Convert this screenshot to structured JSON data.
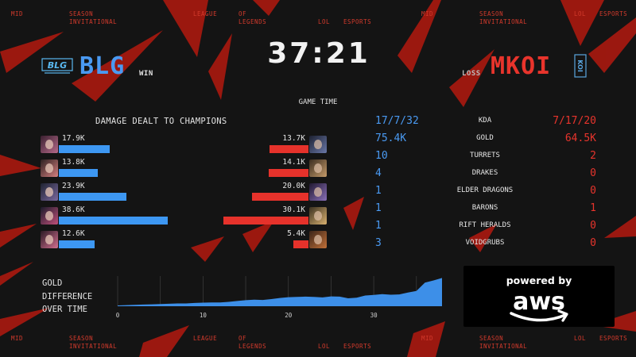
{
  "ticker": {
    "mid": "MID",
    "season": "SEASON",
    "invitational": "INVITATIONAL",
    "league": "LEAGUE",
    "of": "OF",
    "legends": "LEGENDS",
    "lol": "LOL",
    "esports": "ESPORTS"
  },
  "blue_team": {
    "name": "BLG",
    "result": "WIN",
    "logo_text": "BLG",
    "color": "#4a9af2"
  },
  "red_team": {
    "name": "MKOI",
    "result": "LOSS",
    "logo_text": "KOI",
    "color": "#e8342c"
  },
  "game_time": "37:21",
  "game_time_label": "GAME TIME",
  "damage": {
    "title": "DAMAGE DEALT TO CHAMPIONS",
    "blue": [
      {
        "label": "17.9K",
        "value": 17.9,
        "icon": "champion-portrait-icon"
      },
      {
        "label": "13.8K",
        "value": 13.8,
        "icon": "champion-portrait-icon"
      },
      {
        "label": "23.9K",
        "value": 23.9,
        "icon": "champion-portrait-icon"
      },
      {
        "label": "38.6K",
        "value": 38.6,
        "icon": "champion-portrait-icon"
      },
      {
        "label": "12.6K",
        "value": 12.6,
        "icon": "champion-portrait-icon"
      }
    ],
    "red": [
      {
        "label": "13.7K",
        "value": 13.7,
        "icon": "champion-portrait-icon"
      },
      {
        "label": "14.1K",
        "value": 14.1,
        "icon": "champion-portrait-icon"
      },
      {
        "label": "20.0K",
        "value": 20.0,
        "icon": "champion-portrait-icon"
      },
      {
        "label": "30.1K",
        "value": 30.1,
        "icon": "champion-portrait-icon"
      },
      {
        "label": "5.4K",
        "value": 5.4,
        "icon": "champion-portrait-icon"
      }
    ]
  },
  "stats": [
    {
      "label": "KDA",
      "blue": "17/7/32",
      "red": "7/17/20"
    },
    {
      "label": "GOLD",
      "blue": "75.4K",
      "red": "64.5K"
    },
    {
      "label": "TURRETS",
      "blue": "10",
      "red": "2"
    },
    {
      "label": "DRAKES",
      "blue": "4",
      "red": "0"
    },
    {
      "label": "ELDER DRAGONS",
      "blue": "1",
      "red": "0"
    },
    {
      "label": "BARONS",
      "blue": "1",
      "red": "1"
    },
    {
      "label": "RIFT HERALDS",
      "blue": "1",
      "red": "0"
    },
    {
      "label": "VOIDGRUBS",
      "blue": "3",
      "red": "0"
    }
  ],
  "gold_chart": {
    "title_lines": [
      "GOLD",
      "DIFFERENCE",
      "OVER TIME"
    ]
  },
  "sponsor": {
    "powered_by": "powered by",
    "brand": "aws"
  },
  "chart_data": {
    "type": "area",
    "title": "GOLD DIFFERENCE OVER TIME",
    "xlabel": "",
    "ylabel": "",
    "x_ticks": [
      0,
      10,
      20,
      30
    ],
    "xlim": [
      0,
      38
    ],
    "ylim": [
      0,
      11
    ],
    "x": [
      0,
      1,
      2,
      3,
      4,
      5,
      6,
      7,
      8,
      9,
      10,
      11,
      12,
      13,
      14,
      15,
      16,
      17,
      18,
      19,
      20,
      21,
      22,
      23,
      24,
      25,
      26,
      27,
      28,
      29,
      30,
      31,
      32,
      33,
      34,
      35,
      36,
      37,
      38
    ],
    "series": [
      {
        "values": [
          0.3,
          0.4,
          0.5,
          0.6,
          0.7,
          0.8,
          0.9,
          1.0,
          1.0,
          1.2,
          1.3,
          1.4,
          1.4,
          1.6,
          1.9,
          2.2,
          2.4,
          2.3,
          2.6,
          3.0,
          3.3,
          3.4,
          3.5,
          3.4,
          3.2,
          3.6,
          3.5,
          2.9,
          3.1,
          3.9,
          4.1,
          4.4,
          4.2,
          4.3,
          5.0,
          5.6,
          8.6,
          9.4,
          10.3
        ]
      }
    ],
    "grid": true,
    "colors": {
      "fill": "#3d8fe8",
      "grid": "#3a3a3a"
    }
  }
}
